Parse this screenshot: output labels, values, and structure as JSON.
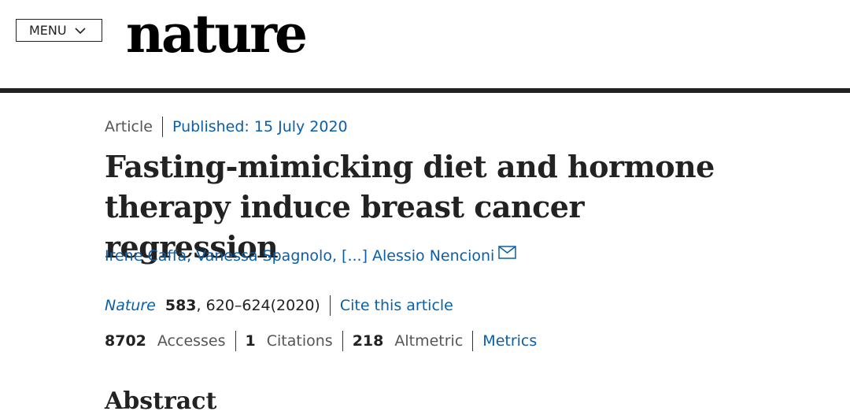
{
  "header": {
    "menu": "MENU",
    "logo": "nature"
  },
  "article": {
    "type": "Article",
    "published": "Published: 15 July 2020",
    "title": "Fasting-mimicking diet and hormone therapy induce breast cancer regression",
    "authors": "Irene Caffa, Vanessa Spagnolo, [...] Alessio Nencioni",
    "citation": {
      "journal": "Nature",
      "volume": "583",
      "pages": ", 620–624(2020)",
      "cite": "Cite this article"
    },
    "metrics": {
      "accesses": {
        "count": 8702,
        "label": "Accesses"
      },
      "citations": {
        "count": 1,
        "label": "Citations"
      },
      "altmetric": {
        "count": 218,
        "label": "Altmetric"
      },
      "link": "Metrics"
    },
    "abstract_heading": "Abstract"
  }
}
